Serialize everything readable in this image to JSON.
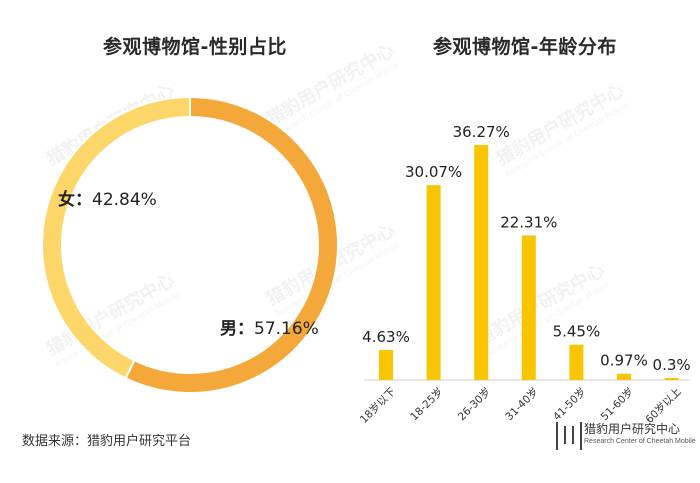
{
  "colors": {
    "male": "#F5A83A",
    "female": "#FDD66A",
    "bar": "#F9C400",
    "text": "#222222",
    "axis": "#d0d0d0"
  },
  "source": "数据来源：猎豹用户研究平台",
  "logo": {
    "name": "猎豹用户研究中心",
    "subtitle": "Research Center of Cheetah Mobile"
  },
  "watermark": {
    "name": "猎豹用户研究中心",
    "subtitle": "Research Center of Cheetah Mobile"
  },
  "chart_data": [
    {
      "type": "pie",
      "title": "参观博物馆-性别占比",
      "donut": true,
      "labels": [
        {
          "prefix": "男",
          "sep": "：",
          "value_text": "57.16%"
        },
        {
          "prefix": "女",
          "sep": "：",
          "value_text": "42.84%"
        }
      ],
      "categories": [
        "男",
        "女"
      ],
      "values": [
        57.16,
        42.84
      ]
    },
    {
      "type": "bar",
      "title": "参观博物馆-年龄分布",
      "categories": [
        "18岁以下",
        "18-25岁",
        "26-30岁",
        "31-40岁",
        "41-50岁",
        "51-60岁",
        "60岁以上"
      ],
      "values": [
        4.63,
        30.07,
        36.27,
        22.31,
        5.45,
        0.97,
        0.3
      ],
      "value_labels": [
        "4.63%",
        "30.07%",
        "36.27%",
        "22.31%",
        "5.45%",
        "0.97%",
        "0.3%"
      ],
      "ylim": [
        0,
        36.27
      ]
    }
  ]
}
